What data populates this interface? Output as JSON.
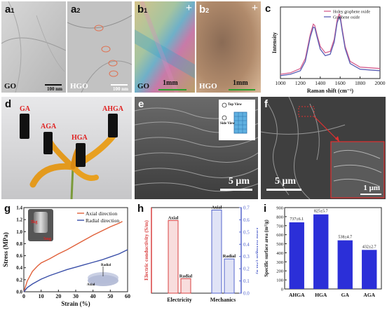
{
  "panels": {
    "a1": {
      "letter": "a",
      "sub": "1",
      "bottom_label": "GO",
      "scale": "100 nm"
    },
    "a2": {
      "letter": "a",
      "sub": "2",
      "bottom_label": "HGO",
      "scale": "100 nm"
    },
    "b1": {
      "letter": "b",
      "sub": "1",
      "bottom_label": "GO",
      "scale": "1mm",
      "corner_mark": "+"
    },
    "b2": {
      "letter": "b",
      "sub": "2",
      "bottom_label": "HGO",
      "scale": "1mm",
      "corner_mark": "+"
    },
    "c": {
      "letter": "c"
    },
    "d": {
      "letter": "d",
      "labels": [
        "GA",
        "AGA",
        "HGA",
        "AHGA"
      ]
    },
    "e": {
      "letter": "e",
      "scale": "5 μm",
      "inset_top": "Top View",
      "inset_side": "Side View"
    },
    "f": {
      "letter": "f",
      "scale": "5 μm",
      "inset_scale": "1 μm"
    },
    "g": {
      "letter": "g",
      "weight_top": "5kg",
      "weight_bottom": "5mg",
      "inset_radial": "Radial",
      "inset_axial": "Axial"
    },
    "h": {
      "letter": "h"
    },
    "i": {
      "letter": "i"
    }
  },
  "chart_data": [
    {
      "id": "c",
      "type": "line",
      "title": "",
      "xlabel": "Raman shift (cm⁻¹)",
      "ylabel": "Intensity",
      "xlim": [
        1000,
        2000
      ],
      "xticks": [
        "1000",
        "1200",
        "1400",
        "1600",
        "1800",
        "2000"
      ],
      "legend": "top-right",
      "series": [
        {
          "name": "Holey graphene oxide",
          "color": "#d6608f",
          "x": [
            1000,
            1100,
            1200,
            1250,
            1300,
            1330,
            1345,
            1370,
            1400,
            1450,
            1500,
            1540,
            1570,
            1590,
            1600,
            1620,
            1650,
            1700,
            1800,
            1900,
            2000
          ],
          "y": [
            0.06,
            0.08,
            0.14,
            0.28,
            0.62,
            0.76,
            0.74,
            0.6,
            0.45,
            0.36,
            0.38,
            0.55,
            0.82,
            0.9,
            0.88,
            0.7,
            0.45,
            0.24,
            0.16,
            0.15,
            0.14
          ]
        },
        {
          "name": "Graphene oxide",
          "color": "#5a5fb5",
          "x": [
            1000,
            1100,
            1200,
            1250,
            1300,
            1330,
            1345,
            1370,
            1400,
            1450,
            1500,
            1540,
            1570,
            1590,
            1600,
            1620,
            1650,
            1700,
            1800,
            1900,
            2000
          ],
          "y": [
            0.04,
            0.06,
            0.11,
            0.24,
            0.58,
            0.72,
            0.71,
            0.57,
            0.41,
            0.32,
            0.34,
            0.51,
            0.78,
            0.86,
            0.85,
            0.67,
            0.42,
            0.21,
            0.13,
            0.12,
            0.11
          ]
        }
      ]
    },
    {
      "id": "g",
      "type": "line",
      "title": "",
      "xlabel": "Strain (%)",
      "ylabel": "Stress (MPa)",
      "xlim": [
        0,
        60
      ],
      "ylim": [
        0,
        1.4
      ],
      "xticks": [
        "0",
        "10",
        "20",
        "30",
        "40",
        "50",
        "60"
      ],
      "yticks": [
        "0.0",
        "0.2",
        "0.4",
        "0.6",
        "0.8",
        "1.0",
        "1.2",
        "1.4"
      ],
      "legend": "top-right",
      "series": [
        {
          "name": "Axial direction",
          "color": "#e0603a",
          "x": [
            0,
            2,
            5,
            8,
            10,
            15,
            20,
            25,
            30,
            35,
            40,
            45,
            50,
            55,
            57
          ],
          "y": [
            0,
            0.18,
            0.34,
            0.43,
            0.48,
            0.55,
            0.63,
            0.7,
            0.78,
            0.86,
            0.94,
            1.01,
            1.08,
            1.14,
            1.17
          ]
        },
        {
          "name": "Radial direction",
          "color": "#3a4fa8",
          "x": [
            0,
            2,
            5,
            10,
            15,
            20,
            25,
            30,
            35,
            40,
            45,
            50,
            55,
            60
          ],
          "y": [
            0,
            0.07,
            0.13,
            0.21,
            0.27,
            0.32,
            0.37,
            0.41,
            0.45,
            0.49,
            0.53,
            0.58,
            0.63,
            0.7
          ]
        }
      ]
    },
    {
      "id": "h",
      "type": "bar",
      "title": "",
      "categories": [
        "Electricity",
        "Mechanics"
      ],
      "ylabel_left": "Electric conductivity (S/m)",
      "ylabel_right": "Yield strength (MPa)",
      "ylim_right": [
        0,
        0.7
      ],
      "yticks_right": [
        "0.0",
        "0.1",
        "0.2",
        "0.3",
        "0.4",
        "0.5",
        "0.6",
        "0.7"
      ],
      "series": [
        {
          "name": "Axial",
          "axis": "left",
          "color": "#d94040",
          "values": [
            0.85,
            null
          ]
        },
        {
          "name": "Radial",
          "axis": "left",
          "color": "#d94040",
          "values": [
            0.17,
            null
          ]
        },
        {
          "name": "Axial",
          "axis": "right",
          "color": "#5566cc",
          "values": [
            null,
            0.68
          ]
        },
        {
          "name": "Radial",
          "axis": "right",
          "color": "#5566cc",
          "values": [
            null,
            0.28
          ]
        }
      ]
    },
    {
      "id": "i",
      "type": "bar",
      "title": "",
      "categories": [
        "AHGA",
        "HGA",
        "GA",
        "AGA"
      ],
      "values": [
        737,
        825,
        538,
        432
      ],
      "labels": [
        "737±6.1",
        "825±5.7",
        "538±4.7",
        "432±2.7"
      ],
      "ylabel": "Specific surface area (m²/g)",
      "ylim": [
        0,
        900
      ],
      "yticks": [
        "0",
        "100",
        "200",
        "300",
        "400",
        "500",
        "600",
        "700",
        "800",
        "900"
      ],
      "color": "#2b2fd8"
    }
  ]
}
